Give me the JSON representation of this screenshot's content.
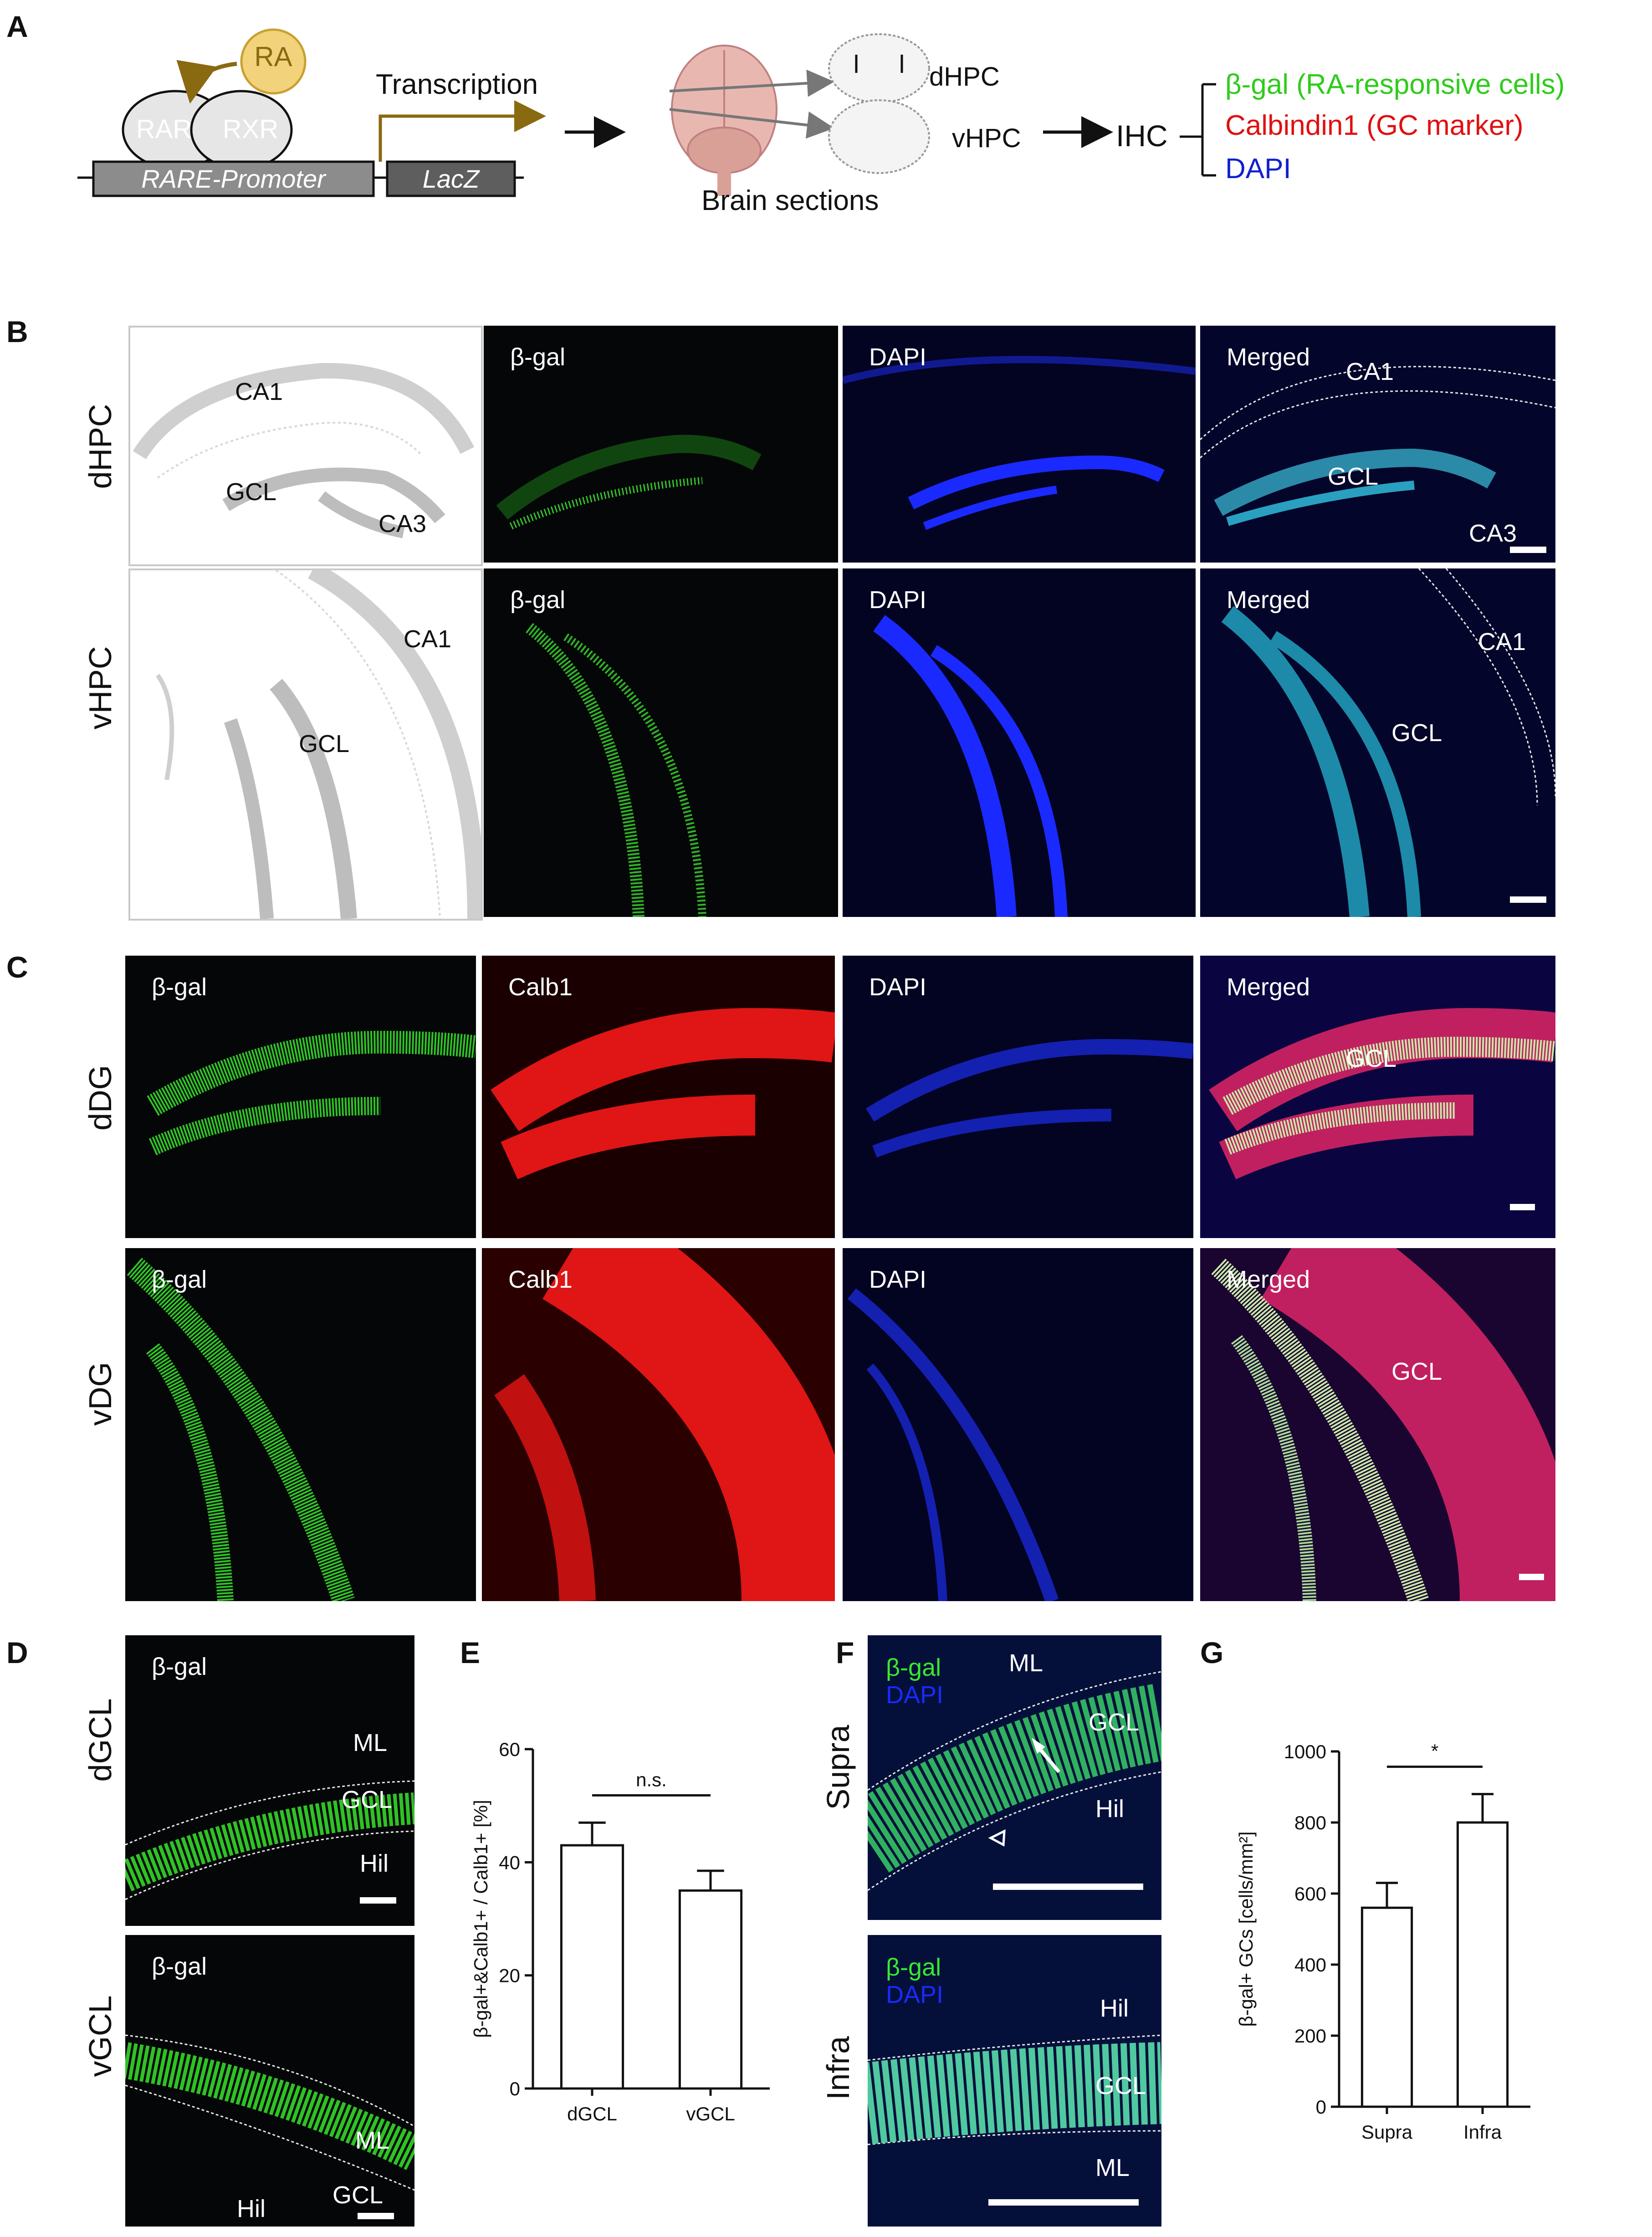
{
  "panels": {
    "A": "A",
    "B": "B",
    "C": "C",
    "D": "D",
    "E": "E",
    "F": "F",
    "G": "G"
  },
  "panelA": {
    "ra": "RA",
    "rar": "RAR",
    "rxr": "RXR",
    "promoter": "RARE-Promoter",
    "lacz": "LacZ",
    "transcription": "Transcription",
    "brain_sections": "Brain sections",
    "dhpc": "dHPC",
    "vhpc": "vHPC",
    "ihc": "IHC",
    "bgal_line": "β-gal (RA-responsive cells)",
    "calb_line": "Calbindin1 (GC marker)",
    "dapi_line": "DAPI",
    "colors": {
      "green": "#2ecc1a",
      "red": "#e01010",
      "blue": "#1020d0",
      "gold": "#f2d27a",
      "brown": "#8a6a10"
    }
  },
  "panelB": {
    "rows": [
      "dHPC",
      "vHPC"
    ],
    "bgal": "β-gal",
    "dapi": "DAPI",
    "merged": "Merged",
    "ca1": "CA1",
    "gcl": "GCL",
    "ca3": "CA3"
  },
  "panelC": {
    "rows": [
      "dDG",
      "vDG"
    ],
    "bgal": "β-gal",
    "calb1": "Calb1",
    "dapi": "DAPI",
    "merged": "Merged",
    "gcl": "GCL"
  },
  "panelD": {
    "rows": [
      "dGCL",
      "vGCL"
    ],
    "bgal": "β-gal",
    "ml": "ML",
    "gcl": "GCL",
    "hil": "Hil"
  },
  "panelF": {
    "rows": [
      "Supra",
      "Infra"
    ],
    "bgal": "β-gal",
    "dapi": "DAPI",
    "ml": "ML",
    "gcl": "GCL",
    "hil": "Hil"
  },
  "chart_data": [
    {
      "type": "bar",
      "panel": "E",
      "categories": [
        "dGCL",
        "vGCL"
      ],
      "values": [
        43,
        35
      ],
      "errors": [
        4,
        3.5
      ],
      "ylabel": "β-gal+&Calb1+ / Calb1+ [%]",
      "ylim": [
        0,
        60
      ],
      "yticks": [
        "0",
        "20",
        "40",
        "60"
      ],
      "annotation": "n.s."
    },
    {
      "type": "bar",
      "panel": "G",
      "categories": [
        "Supra",
        "Infra"
      ],
      "values": [
        560,
        800
      ],
      "errors": [
        70,
        80
      ],
      "ylabel": "β-gal+ GCs [cells/mm²]",
      "ylim": [
        0,
        1000
      ],
      "yticks": [
        "0",
        "200",
        "400",
        "600",
        "800",
        "1000"
      ],
      "annotation": "*"
    }
  ]
}
